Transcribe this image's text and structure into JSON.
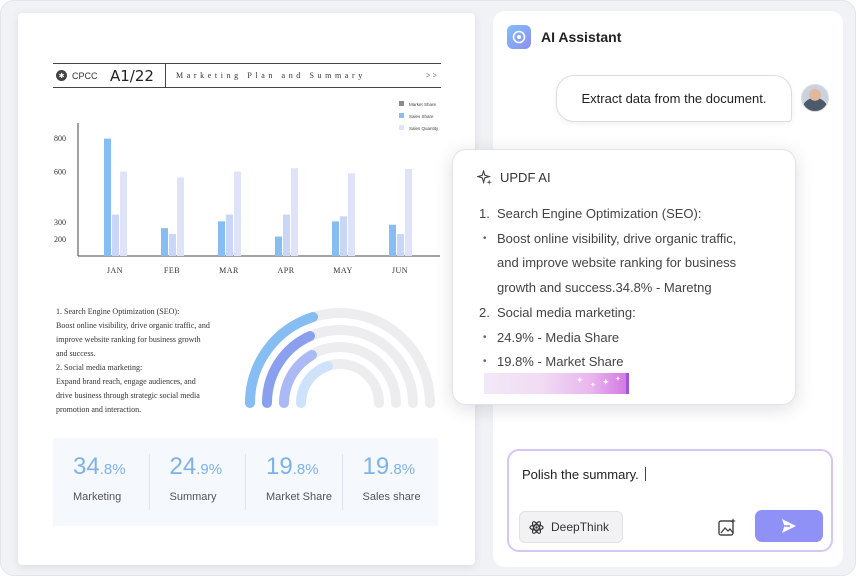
{
  "document": {
    "logo_text": "CPCC",
    "page_code": "A1/22",
    "header_title": "Marketing Plan and Summary",
    "header_arrow": ">>",
    "body_lines": [
      "1. Search Engine Optimization (SEO):",
      "Boost online visibility, drive organic traffic, and",
      "improve website ranking for business growth",
      "and success.",
      "2. Social media marketing:",
      "Expand brand reach, engage audiences, and",
      "drive business through strategic social media",
      "promotion and interaction."
    ],
    "stats": [
      {
        "big": "34",
        "small": ".8%",
        "label": "Marketing"
      },
      {
        "big": "24",
        "small": ".9%",
        "label": "Summary"
      },
      {
        "big": "19",
        "small": ".8%",
        "label": "Market Share"
      },
      {
        "big": "19",
        "small": ".8%",
        "label": "Sales share"
      }
    ]
  },
  "chart_data": {
    "type": "bar",
    "categories": [
      "JAN",
      "FEB",
      "MAR",
      "APR",
      "MAY",
      "JUN"
    ],
    "y_ticks": [
      "200",
      "300",
      "600",
      "800"
    ],
    "ylim": [
      100,
      840
    ],
    "grid": false,
    "legend_position": "top-right",
    "series": [
      {
        "name": "Market Share",
        "color": "#8c8c8c",
        "values": [
          0,
          0,
          0,
          0,
          0,
          0
        ]
      },
      {
        "name": "Sales Share",
        "color": "#86bdf2",
        "values": [
          795,
          265,
          305,
          215,
          305,
          285
        ]
      },
      {
        "name": "Sales Quantity",
        "color": "#dfe3fa",
        "values": [
          600,
          565,
          600,
          620,
          590,
          615
        ]
      }
    ],
    "third_bar_values": [
      345,
      230,
      345,
      345,
      335,
      230
    ],
    "third_bar_color": "#c9d6f7"
  },
  "assistant": {
    "title": "AI Assistant",
    "user_message": "Extract data from the document.",
    "ai_name": "UPDF AI",
    "ai_items": [
      {
        "bullet": "1.",
        "text": "Search Engine Optimization (SEO):"
      },
      {
        "bullet": "•",
        "text": "Boost online visibility, drive organic traffic,"
      },
      {
        "bullet": "",
        "text": "and improve website ranking for business"
      },
      {
        "bullet": "",
        "text": "growth and success.34.8% - Maretng"
      },
      {
        "bullet": "2.",
        "text": "Social media marketing:"
      },
      {
        "bullet": "•",
        "text": "24.9% - Media Share"
      },
      {
        "bullet": "•",
        "text": "19.8% - Market Share"
      }
    ],
    "input_value": "Polish the summary.",
    "deepthink_label": "DeepThink",
    "accent": "#8f91f6"
  }
}
